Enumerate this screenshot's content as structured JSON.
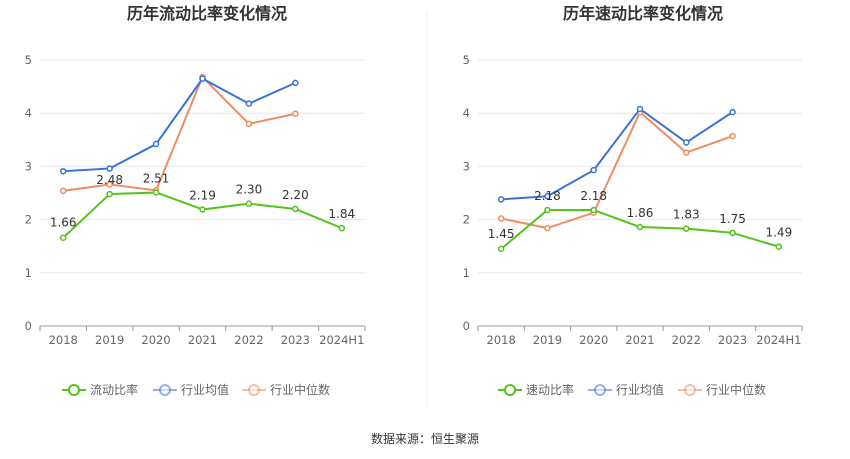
{
  "source_text": "数据来源：恒生聚源",
  "colors": {
    "company": "#52c41a",
    "industry_avg": "#3a72d8",
    "industry_median": "#f08c62",
    "grid": "#e6e8f0",
    "axis": "#999999"
  },
  "chart_data": [
    {
      "type": "line",
      "title": "历年流动比率变化情况",
      "categories": [
        "2018",
        "2019",
        "2020",
        "2021",
        "2022",
        "2023",
        "2024H1"
      ],
      "ylim": [
        0,
        5
      ],
      "yticks": [
        0,
        1,
        2,
        3,
        4,
        5
      ],
      "grid": true,
      "legend_position": "bottom",
      "series": [
        {
          "name": "流动比率",
          "values": [
            1.66,
            2.48,
            2.51,
            2.19,
            2.3,
            2.2,
            1.84
          ],
          "data_labels": [
            "1.66",
            "2.48",
            "2.51",
            "2.19",
            "2.30",
            "2.20",
            "1.84"
          ]
        },
        {
          "name": "行业均值",
          "values": [
            2.91,
            2.96,
            3.42,
            4.65,
            4.18,
            4.57,
            null
          ]
        },
        {
          "name": "行业中位数",
          "values": [
            2.54,
            2.66,
            2.55,
            4.68,
            3.8,
            3.99,
            null
          ]
        }
      ]
    },
    {
      "type": "line",
      "title": "历年速动比率变化情况",
      "categories": [
        "2018",
        "2019",
        "2020",
        "2021",
        "2022",
        "2023",
        "2024H1"
      ],
      "ylim": [
        0,
        5
      ],
      "yticks": [
        0,
        1,
        2,
        3,
        4,
        5
      ],
      "grid": true,
      "legend_position": "bottom",
      "series": [
        {
          "name": "速动比率",
          "values": [
            1.45,
            2.18,
            2.18,
            1.86,
            1.83,
            1.75,
            1.49
          ],
          "data_labels": [
            "1.45",
            "2.18",
            "2.18",
            "1.86",
            "1.83",
            "1.75",
            "1.49"
          ]
        },
        {
          "name": "行业均值",
          "values": [
            2.38,
            2.44,
            2.93,
            4.08,
            3.45,
            4.02,
            null
          ]
        },
        {
          "name": "行业中位数",
          "values": [
            2.02,
            1.84,
            2.13,
            4.02,
            3.26,
            3.57,
            null
          ]
        }
      ]
    }
  ]
}
